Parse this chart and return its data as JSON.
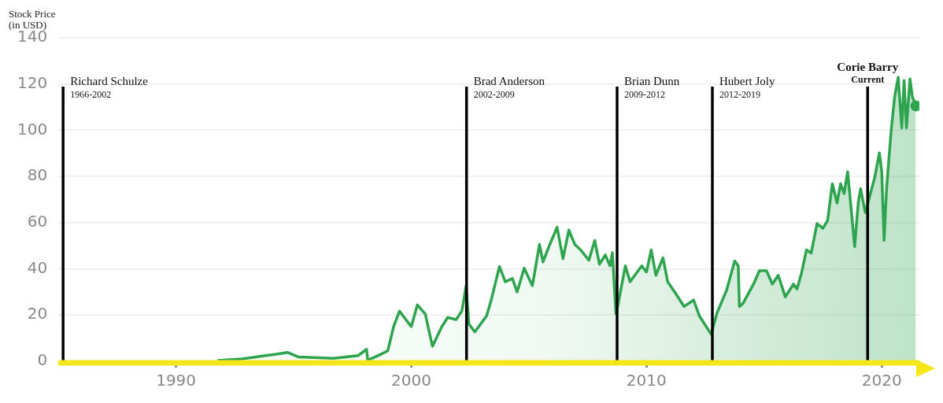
{
  "chart_data": {
    "type": "area",
    "ylabel": "Stock Price\n(in USD)",
    "xlim": [
      1985,
      2021.6
    ],
    "xticks": [
      1990,
      2000,
      2010,
      2020
    ],
    "ylim": [
      0,
      140
    ],
    "yticks": [
      0,
      20,
      40,
      60,
      80,
      100,
      120,
      140
    ],
    "grid": "y",
    "series": [
      {
        "color": "#2ea44f",
        "x": [
          1991.76,
          1992.8,
          1993.75,
          1994.2,
          1994.75,
          1995.2,
          1996.7,
          1997.75,
          1998.1,
          1998.15,
          1998.6,
          1999.0,
          1999.25,
          1999.5,
          2000.0,
          2000.26,
          2000.6,
          2000.9,
          2001.3,
          2001.55,
          2001.9,
          2002.15,
          2002.33,
          2002.45,
          2002.7,
          2003.2,
          2003.4,
          2003.75,
          2004.0,
          2004.3,
          2004.5,
          2004.8,
          2005.15,
          2005.45,
          2005.6,
          2005.85,
          2006.2,
          2006.45,
          2006.7,
          2006.95,
          2007.2,
          2007.55,
          2007.8,
          2008.0,
          2008.25,
          2008.45,
          2008.55,
          2008.7,
          2008.8,
          2009.1,
          2009.3,
          2009.8,
          2010.0,
          2010.2,
          2010.4,
          2010.7,
          2010.9,
          2011.25,
          2011.6,
          2012.0,
          2012.25,
          2012.75,
          2013.0,
          2013.4,
          2013.75,
          2013.9,
          2013.95,
          2014.1,
          2014.55,
          2014.8,
          2015.1,
          2015.35,
          2015.6,
          2015.9,
          2016.25,
          2016.4,
          2016.6,
          2016.8,
          2017.0,
          2017.25,
          2017.5,
          2017.7,
          2017.9,
          2018.1,
          2018.25,
          2018.4,
          2018.55,
          2018.65,
          2018.85,
          2019.0,
          2019.1,
          2019.3,
          2019.45,
          2019.7,
          2019.9,
          2020.0,
          2020.1,
          2020.2,
          2020.4,
          2020.55,
          2020.7,
          2020.85,
          2020.95,
          2021.05,
          2021.2,
          2021.3,
          2021.45
        ],
        "values": [
          0.3,
          1,
          2.4,
          3,
          3.8,
          1.9,
          1.3,
          2.5,
          5.2,
          0.5,
          2.5,
          4.5,
          15,
          21.7,
          15,
          24.4,
          20.4,
          6.5,
          15,
          19,
          18,
          21.7,
          32.4,
          16.2,
          12.7,
          19.6,
          26.5,
          41,
          34.4,
          35.8,
          30,
          40.3,
          32.7,
          50.6,
          43,
          49.6,
          58,
          44.4,
          56.8,
          50.6,
          48.2,
          43.7,
          52.3,
          42,
          46,
          41.3,
          47,
          20.6,
          25,
          41.3,
          34.4,
          41.3,
          38.6,
          48.2,
          37.2,
          44.8,
          34.4,
          29.2,
          23.7,
          26.5,
          19.6,
          11.7,
          21,
          30.6,
          43.4,
          41.3,
          23.7,
          25,
          33.4,
          39.2,
          39.2,
          33.4,
          37.2,
          27.9,
          33.4,
          31.3,
          38.6,
          48.2,
          46.8,
          59.6,
          57.5,
          61,
          76.8,
          68.5,
          76.8,
          72.6,
          82,
          71.3,
          49.6,
          68.5,
          74.7,
          64.4,
          69.9,
          79.5,
          90.2,
          82,
          52.3,
          74,
          99.8,
          114.6,
          122.9,
          101,
          121.5,
          101,
          122.2,
          114.6,
          110.5
        ]
      }
    ],
    "ref_lines": [
      {
        "axis": "x",
        "value": 1985.2,
        "label": "Richard Schulze\n1966-2002",
        "color": "#000000"
      },
      {
        "axis": "x",
        "value": 2002.35,
        "label": "Brad Anderson\n2002-2009",
        "color": "#000000"
      },
      {
        "axis": "x",
        "value": 2008.75,
        "label": "Brian Dunn\n2009-2012",
        "color": "#000000"
      },
      {
        "axis": "x",
        "value": 2012.8,
        "label": "Hubert Joly\n2012-2019",
        "color": "#000000"
      },
      {
        "axis": "x",
        "value": 2019.4,
        "label": "Corie Barry\nCurrent",
        "color": "#000000"
      }
    ]
  }
}
